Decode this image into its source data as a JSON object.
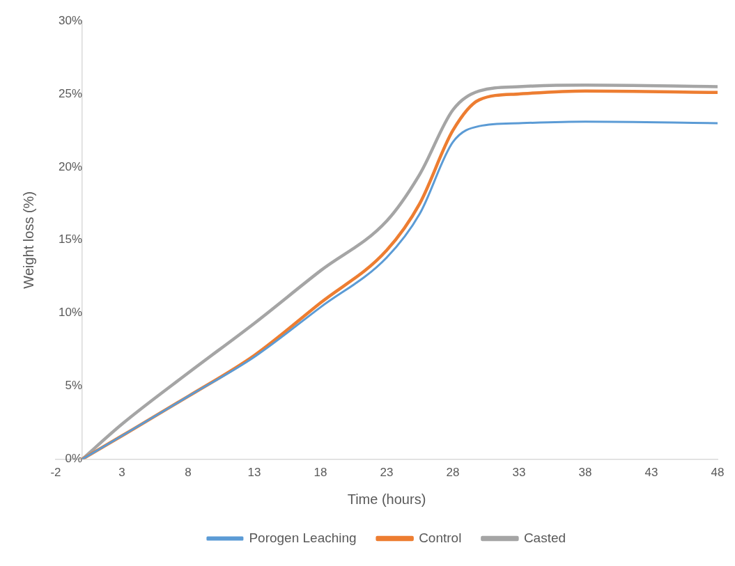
{
  "chart_data": {
    "type": "line",
    "xlabel": "Time (hours)",
    "ylabel": "Weight loss (%)",
    "x": [
      0,
      3,
      8,
      13,
      18,
      23,
      25.5,
      28,
      30,
      33,
      38,
      48
    ],
    "series": [
      {
        "name": "Porogen Leaching",
        "color": "#5b9bd5",
        "values": [
          0,
          1.6,
          4.3,
          7.0,
          10.4,
          13.8,
          16.8,
          21.7,
          22.8,
          23.0,
          23.1,
          23.0
        ]
      },
      {
        "name": "Control",
        "color": "#ed7d31",
        "values": [
          0,
          1.6,
          4.3,
          7.1,
          10.7,
          14.3,
          17.5,
          22.5,
          24.6,
          25.0,
          25.2,
          25.1
        ]
      },
      {
        "name": "Casted",
        "color": "#a5a5a5",
        "values": [
          0,
          2.4,
          5.9,
          9.3,
          12.9,
          16.3,
          19.5,
          23.9,
          25.2,
          25.5,
          25.6,
          25.5
        ]
      }
    ],
    "xlim": [
      -2,
      48
    ],
    "xticks": [
      -2,
      3,
      8,
      13,
      18,
      23,
      28,
      33,
      38,
      43,
      48
    ],
    "ylim": [
      0,
      30
    ],
    "yticks": [
      {
        "value": 0,
        "label": "0%"
      },
      {
        "value": 5,
        "label": "5%"
      },
      {
        "value": 10,
        "label": "10%"
      },
      {
        "value": 15,
        "label": "15%"
      },
      {
        "value": 20,
        "label": "20%"
      },
      {
        "value": 25,
        "label": "25%"
      },
      {
        "value": 30,
        "label": "30%"
      }
    ],
    "grid": false,
    "legend": "bottom",
    "marker": "none",
    "line_style": "solid"
  }
}
